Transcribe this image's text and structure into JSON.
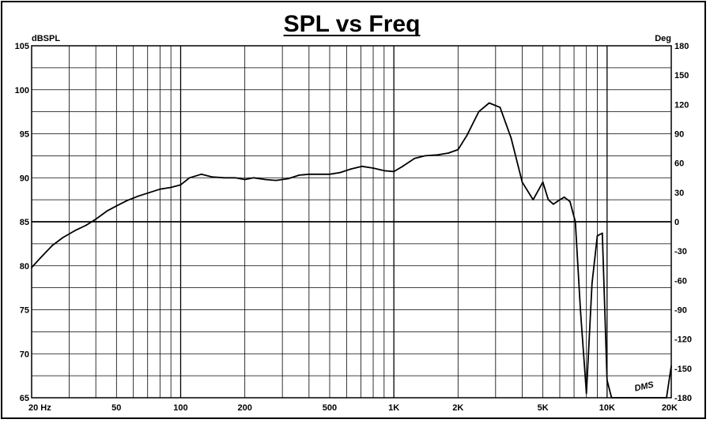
{
  "chart_data": {
    "type": "line",
    "title": "SPL vs Freq",
    "y_left_unit": "dBSPL",
    "y_right_unit": "Deg",
    "x_scale": "log",
    "xlim": [
      20,
      20000
    ],
    "ylim": [
      65,
      105
    ],
    "y2lim": [
      -180,
      180
    ],
    "x_tick_labels": [
      {
        "value": 20,
        "label": "20  Hz"
      },
      {
        "value": 50,
        "label": "50"
      },
      {
        "value": 100,
        "label": "100"
      },
      {
        "value": 200,
        "label": "200"
      },
      {
        "value": 500,
        "label": "500"
      },
      {
        "value": 1000,
        "label": "1K"
      },
      {
        "value": 2000,
        "label": "2K"
      },
      {
        "value": 5000,
        "label": "5K"
      },
      {
        "value": 10000,
        "label": "10K"
      },
      {
        "value": 20000,
        "label": "20K"
      }
    ],
    "y_left_ticks": [
      105,
      100,
      95,
      90,
      85,
      80,
      75,
      70,
      65
    ],
    "y_right_ticks": [
      180,
      150,
      120,
      90,
      60,
      30,
      0,
      -30,
      -60,
      -90,
      -120,
      -150,
      -180
    ],
    "grid": true,
    "reference_line_deg": 0,
    "signature": "DMS",
    "series": [
      {
        "axis": "left",
        "x": [
          20,
          22,
          25,
          28,
          32,
          36,
          40,
          45,
          50,
          56,
          63,
          71,
          80,
          90,
          100,
          110,
          125,
          140,
          160,
          180,
          200,
          220,
          250,
          280,
          320,
          360,
          400,
          450,
          500,
          560,
          630,
          710,
          800,
          900,
          1000,
          1100,
          1250,
          1400,
          1600,
          1800,
          2000,
          2200,
          2500,
          2800,
          3150,
          3550,
          4000,
          4500,
          5000,
          5300,
          5600,
          6000,
          6300,
          6700,
          7100,
          7500,
          8000,
          8500,
          9000,
          9500,
          10000,
          10500,
          11200,
          11800,
          12500,
          13300,
          14000,
          15000,
          16000,
          17000,
          18000,
          19000,
          20000
        ],
        "y": [
          79.8,
          80.9,
          82.3,
          83.2,
          84.0,
          84.6,
          85.3,
          86.2,
          86.8,
          87.4,
          87.9,
          88.3,
          88.7,
          88.9,
          89.2,
          90.0,
          90.4,
          90.1,
          90.0,
          90.0,
          89.8,
          90.0,
          89.8,
          89.7,
          89.9,
          90.3,
          90.4,
          90.4,
          90.4,
          90.6,
          91.0,
          91.3,
          91.1,
          90.8,
          90.7,
          91.3,
          92.2,
          92.5,
          92.6,
          92.8,
          93.2,
          94.8,
          97.5,
          98.5,
          98.0,
          94.5,
          89.5,
          87.5,
          89.5,
          87.5,
          87.0,
          87.5,
          87.8,
          87.3,
          85.0,
          75.0,
          65.5,
          78.0,
          83.4,
          83.7,
          67.0,
          65.0,
          65.0,
          65.0,
          65.0,
          65.0,
          65.0,
          65.0,
          65.0,
          65.0,
          65.0,
          65.0,
          68.6
        ]
      }
    ]
  }
}
